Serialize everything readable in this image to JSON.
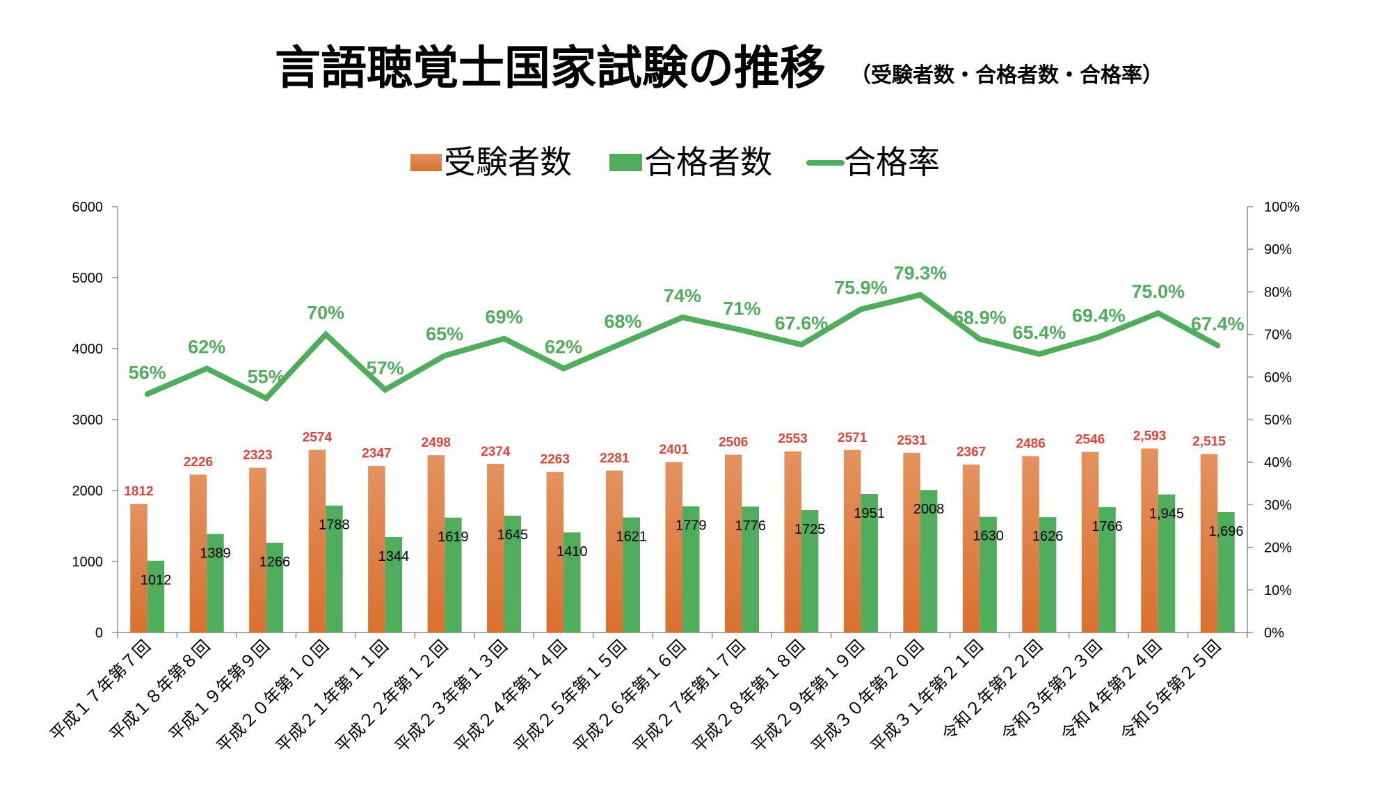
{
  "chart_data": {
    "type": "bar+line",
    "title": "言語聴覚士国家試験の推移",
    "subtitle": "（受験者数・合格者数・合格率）",
    "categories": [
      "平成１７年第７回",
      "平成１８年第８回",
      "平成１９年第９回",
      "平成２０年第１０回",
      "平成２１年第１１回",
      "平成２２年第１２回",
      "平成２３年第１３回",
      "平成２４年第１４回",
      "平成２５年第１５回",
      "平成２６年第１６回",
      "平成２７年第１７回",
      "平成２８年第１８回",
      "平成２９年第１９回",
      "平成３０年第２０回",
      "平成３１年第２１回",
      "令和２年第２２回",
      "令和３年第２３回",
      "令和４年第２４回",
      "令和５年第２５回"
    ],
    "legend": {
      "position": "top",
      "entries": [
        "受験者数",
        "合格者数",
        "合格率"
      ]
    },
    "series": [
      {
        "name": "受験者数",
        "type": "bar",
        "axis": "left",
        "color": "#e07d40",
        "values": [
          1812,
          2226,
          2323,
          2574,
          2347,
          2498,
          2374,
          2263,
          2281,
          2401,
          2506,
          2553,
          2571,
          2531,
          2367,
          2486,
          2546,
          2593,
          2515
        ],
        "labels": [
          "1812",
          "2226",
          "2323",
          "2574",
          "2347",
          "2498",
          "2374",
          "2263",
          "2281",
          "2401",
          "2506",
          "2553",
          "2571",
          "2531",
          "2367",
          "2486",
          "2546",
          "2,593",
          "2,515"
        ],
        "label_color": "#e0453a"
      },
      {
        "name": "合格者数",
        "type": "bar",
        "axis": "left",
        "color": "#4fad5b",
        "values": [
          1012,
          1389,
          1266,
          1788,
          1344,
          1619,
          1645,
          1410,
          1621,
          1779,
          1776,
          1725,
          1951,
          2008,
          1630,
          1626,
          1766,
          1945,
          1696
        ],
        "labels": [
          "1012",
          "1389",
          "1266",
          "1788",
          "1344",
          "1619",
          "1645",
          "1410",
          "1621",
          "1779",
          "1776",
          "1725",
          "1951",
          "2008",
          "1630",
          "1626",
          "1766",
          "1,945",
          "1,696"
        ],
        "label_color": "#000000"
      },
      {
        "name": "合格率",
        "type": "line",
        "axis": "right",
        "color": "#4fad5b",
        "values": [
          56,
          62,
          55,
          70,
          57,
          65,
          69,
          62,
          68,
          74,
          71,
          67.6,
          75.9,
          79.3,
          68.9,
          65.4,
          69.4,
          75.0,
          67.4
        ],
        "labels": [
          "56%",
          "62%",
          "55%",
          "70%",
          "57%",
          "65%",
          "69%",
          "62%",
          "68%",
          "74%",
          "71%",
          "67.6%",
          "75.9%",
          "79.3%",
          "68.9%",
          "65.4%",
          "69.4%",
          "75.0%",
          "67.4%"
        ]
      }
    ],
    "y_left": {
      "range": [
        0,
        6000
      ],
      "ticks": [
        "0",
        "1000",
        "2000",
        "3000",
        "4000",
        "5000",
        "6000"
      ]
    },
    "y_right": {
      "range": [
        0,
        100
      ],
      "ticks": [
        "0%",
        "10%",
        "20%",
        "30%",
        "40%",
        "50%",
        "60%",
        "70%",
        "80%",
        "90%",
        "100%"
      ]
    },
    "grid": false,
    "xlabel": "",
    "ylabel": ""
  }
}
